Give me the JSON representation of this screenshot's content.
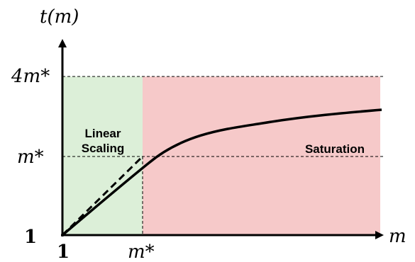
{
  "diagram": {
    "y_axis_label": "t(m)",
    "x_axis_label": "m",
    "y_ticks": [
      "4m*",
      "m*",
      "1"
    ],
    "x_ticks": [
      "1",
      "m*"
    ],
    "regions": [
      {
        "label_lines": [
          "Linear",
          "Scaling"
        ],
        "color": "#dcefd8"
      },
      {
        "label_lines": [
          "Saturation"
        ],
        "color": "#f6c9c9"
      }
    ],
    "colors": {
      "axis": "#000000",
      "curve": "#000000",
      "guide": "#000000"
    }
  }
}
